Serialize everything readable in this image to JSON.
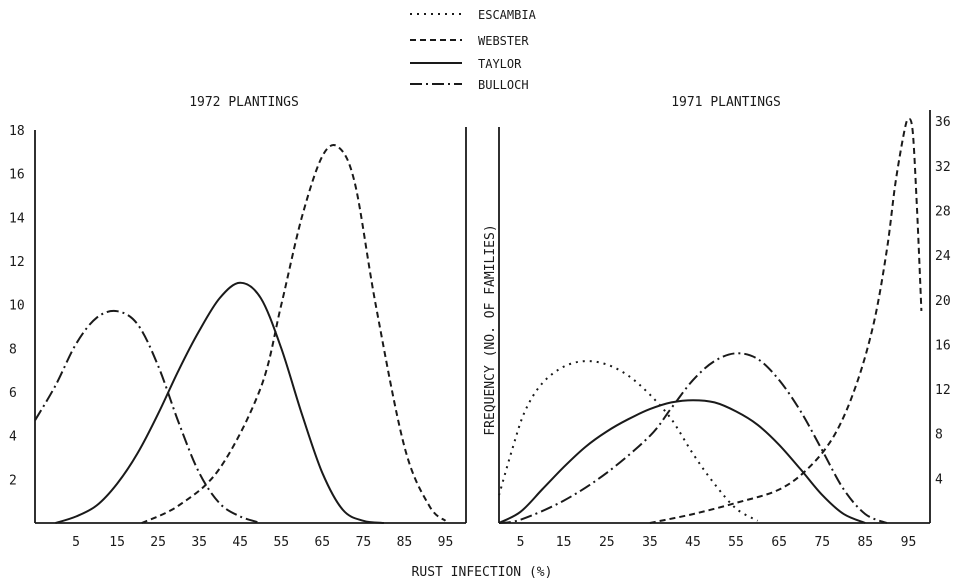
{
  "legend": [
    {
      "name": "ESCAMBIA",
      "style": "dotted"
    },
    {
      "name": "WEBSTER",
      "style": "dashed"
    },
    {
      "name": "TAYLOR",
      "style": "solid"
    },
    {
      "name": "BULLOCH",
      "style": "dashdot"
    }
  ],
  "xlabel": "RUST INFECTION (%)",
  "chart_data": [
    {
      "type": "line",
      "title": "1972 PLANTINGS",
      "xlabel": "RUST INFECTION (%)",
      "ylabel": "",
      "xlim": [
        -5,
        100
      ],
      "ylim": [
        0,
        18
      ],
      "xticks": [
        5,
        15,
        25,
        35,
        45,
        55,
        65,
        75,
        85,
        95
      ],
      "yticks": [
        2,
        4,
        6,
        8,
        10,
        12,
        14,
        16,
        18
      ],
      "ytick_labels": [
        "2",
        "4",
        "6",
        "8",
        "10",
        "12",
        "14",
        "16",
        "18"
      ],
      "series": [
        {
          "name": "WEBSTER",
          "style": "dashed",
          "x": [
            21,
            30,
            40,
            50,
            55,
            60,
            65,
            69,
            73,
            78,
            85,
            91,
            95
          ],
          "y": [
            0,
            0.8,
            2.5,
            6.2,
            10.0,
            14.0,
            16.8,
            17.2,
            15.5,
            10.0,
            3.5,
            0.8,
            0.1
          ]
        },
        {
          "name": "TAYLOR",
          "style": "solid",
          "x": [
            0,
            5,
            10,
            15,
            20,
            25,
            30,
            35,
            40,
            45,
            50,
            55,
            60,
            65,
            70,
            75,
            80
          ],
          "y": [
            0,
            0.3,
            0.8,
            1.8,
            3.2,
            5.0,
            7.0,
            8.8,
            10.3,
            11.0,
            10.3,
            8.0,
            5.0,
            2.3,
            0.6,
            0.1,
            0
          ]
        },
        {
          "name": "BULLOCH",
          "style": "dashdot",
          "x": [
            -5,
            0,
            5,
            10,
            15,
            20,
            25,
            30,
            35,
            40,
            45,
            50
          ],
          "y": [
            4.7,
            6.3,
            8.2,
            9.4,
            9.7,
            9.1,
            7.2,
            4.6,
            2.3,
            0.9,
            0.3,
            0
          ]
        }
      ]
    },
    {
      "type": "line",
      "title": "1971 PLANTINGS",
      "xlabel": "RUST INFECTION (%)",
      "ylabel": "FREQUENCY (NO. OF FAMILIES)",
      "xlim": [
        0,
        100
      ],
      "ylim": [
        0,
        37
      ],
      "xticks": [
        5,
        15,
        25,
        35,
        45,
        55,
        65,
        75,
        85,
        95
      ],
      "yticks": [
        4,
        8,
        12,
        16,
        20,
        24,
        28,
        32,
        36
      ],
      "ytick_labels": [
        "4",
        "8",
        "12",
        "16",
        "20",
        "24",
        "28",
        "32",
        "36"
      ],
      "series": [
        {
          "name": "ESCAMBIA",
          "style": "dotted",
          "x": [
            0,
            3,
            6,
            10,
            15,
            20,
            25,
            30,
            35,
            40,
            45,
            50,
            55,
            60
          ],
          "y": [
            2.5,
            6.5,
            10.0,
            12.5,
            14.0,
            14.5,
            14.2,
            13.2,
            11.5,
            9.3,
            6.2,
            3.5,
            1.3,
            0.2
          ]
        },
        {
          "name": "WEBSTER",
          "style": "dashed",
          "x": [
            35,
            45,
            55,
            65,
            72,
            78,
            83,
            87,
            90,
            92,
            94,
            95,
            96,
            97,
            98
          ],
          "y": [
            0,
            0.8,
            1.8,
            3.0,
            5.0,
            8.0,
            12.5,
            18.0,
            24.5,
            30.5,
            35.0,
            36.2,
            35.0,
            28.0,
            19.0
          ]
        },
        {
          "name": "TAYLOR",
          "style": "solid",
          "x": [
            0,
            5,
            10,
            15,
            20,
            25,
            30,
            35,
            40,
            45,
            50,
            55,
            60,
            65,
            70,
            75,
            80,
            85
          ],
          "y": [
            0,
            1.0,
            3.0,
            5.0,
            6.8,
            8.2,
            9.3,
            10.2,
            10.8,
            11.0,
            10.8,
            10.0,
            8.8,
            7.0,
            4.8,
            2.5,
            0.8,
            0
          ]
        },
        {
          "name": "BULLOCH",
          "style": "dashdot",
          "x": [
            0,
            5,
            15,
            25,
            35,
            40,
            45,
            50,
            55,
            60,
            65,
            70,
            75,
            80,
            85,
            90
          ],
          "y": [
            0,
            0.3,
            2.0,
            4.5,
            7.8,
            10.3,
            12.8,
            14.5,
            15.2,
            14.7,
            12.8,
            10.0,
            6.5,
            3.0,
            0.8,
            0
          ]
        }
      ]
    }
  ]
}
